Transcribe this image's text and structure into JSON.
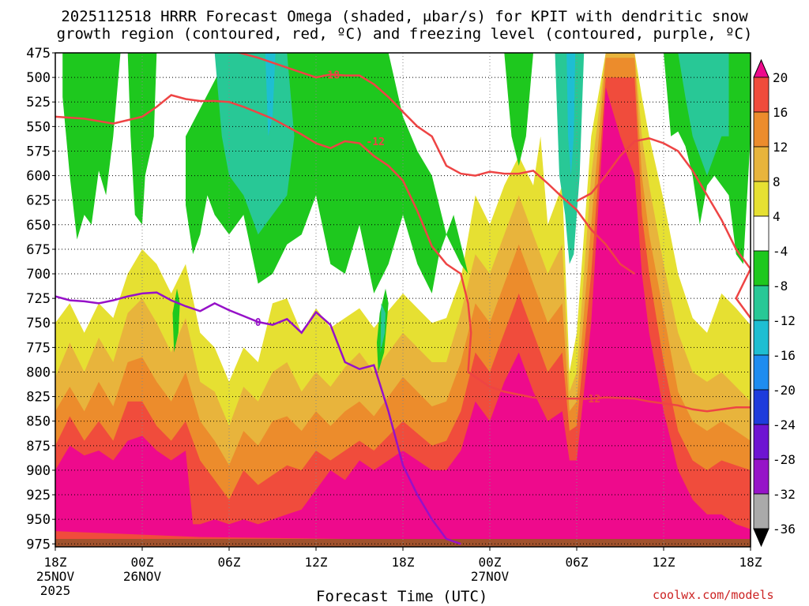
{
  "title_line1": "2025112518 HRRR Forecast Omega (shaded, μbar/s) for KPIT with dendritic snow",
  "title_line2": "growth region (contoured, red, ºC) and freezing level (contoured, purple, ºC)",
  "credit": "coolwx.com/models",
  "colors": {
    "pos4_8": "#e6e032",
    "pos8_12": "#e8b43c",
    "pos12_16": "#ec8c2c",
    "pos16_20": "#f04c3c",
    "pos20": "#ee0a8c",
    "neg4_8": "#1ec81e",
    "neg8_12": "#28c896",
    "neg12_16": "#1ebed2",
    "neg16_20": "#1e8cf0",
    "dgz": "#ee4444",
    "freezing": "#9611c8",
    "ground": "#a0522d"
  },
  "chart_data": {
    "type": "heatmap",
    "title": "2025112518 HRRR Forecast Omega (shaded, μbar/s) for KPIT with dendritic snow growth region (contoured, red, ºC) and freezing level (contoured, purple, ºC)",
    "xlabel": "Forecast Time (UTC)",
    "ylabel": "",
    "x_ticks": [
      {
        "hour": 0,
        "lines": [
          "18Z",
          "25NOV",
          "2025"
        ]
      },
      {
        "hour": 6,
        "lines": [
          "00Z",
          "26NOV"
        ]
      },
      {
        "hour": 12,
        "lines": [
          "06Z"
        ]
      },
      {
        "hour": 18,
        "lines": [
          "12Z"
        ]
      },
      {
        "hour": 24,
        "lines": [
          "18Z"
        ]
      },
      {
        "hour": 30,
        "lines": [
          "00Z",
          "27NOV"
        ]
      },
      {
        "hour": 36,
        "lines": [
          "06Z"
        ]
      },
      {
        "hour": 42,
        "lines": [
          "12Z"
        ]
      },
      {
        "hour": 48,
        "lines": [
          "18Z"
        ]
      }
    ],
    "xlim": [
      0,
      48
    ],
    "y_ticks": [
      "475",
      "500",
      "525",
      "550",
      "575",
      "600",
      "625",
      "650",
      "675",
      "700",
      "725",
      "750",
      "775",
      "800",
      "825",
      "850",
      "875",
      "900",
      "925",
      "950",
      "975"
    ],
    "ylim": [
      475,
      978
    ],
    "y_reversed": true,
    "colorbar": {
      "labels": [
        "20",
        "16",
        "12",
        "8",
        "4",
        "-4",
        "-8",
        "-12",
        "-16",
        "-20",
        "-24",
        "-28",
        "-32",
        "-36"
      ],
      "colors": [
        "#ee0a8c",
        "#f04c3c",
        "#ec8c2c",
        "#e8b43c",
        "#e6e032",
        "#ffffff",
        "#1ec81e",
        "#28c896",
        "#1ebed2",
        "#1e8cf0",
        "#1e3cdc",
        "#6e14d2",
        "#9614c8",
        "#aaaaaa",
        "#000000"
      ]
    },
    "contour_labels": [
      {
        "text": "-18",
        "hour": 19.0,
        "p": 497
      },
      {
        "text": "-12",
        "hour": 22.1,
        "p": 565
      },
      {
        "text": "-12",
        "hour": 37.0,
        "p": 827
      },
      {
        "text": "0",
        "hour": 14.0,
        "p": 749
      }
    ],
    "series": [
      {
        "name": "Freezing level 0ºC",
        "color": "#9611c8",
        "points": [
          [
            0,
            723
          ],
          [
            1,
            727
          ],
          [
            2,
            728
          ],
          [
            3,
            730
          ],
          [
            4,
            727
          ],
          [
            5,
            723
          ],
          [
            6,
            720
          ],
          [
            7,
            719
          ],
          [
            8,
            727
          ],
          [
            9,
            733
          ],
          [
            10,
            738
          ],
          [
            11,
            730
          ],
          [
            12,
            737
          ],
          [
            13,
            743
          ],
          [
            14,
            749
          ],
          [
            15,
            752
          ],
          [
            16,
            746
          ],
          [
            17,
            760
          ],
          [
            18,
            739
          ],
          [
            19,
            752
          ],
          [
            20,
            790
          ],
          [
            21,
            797
          ],
          [
            22,
            793
          ],
          [
            23,
            840
          ],
          [
            24,
            895
          ],
          [
            25,
            925
          ],
          [
            26,
            950
          ],
          [
            27,
            970
          ],
          [
            28,
            975
          ]
        ]
      },
      {
        "name": "DGZ -18ºC",
        "color": "#ee4444",
        "points": [
          [
            12,
            472
          ],
          [
            14,
            480
          ],
          [
            16,
            490
          ],
          [
            18,
            500
          ],
          [
            19,
            497
          ],
          [
            20,
            498
          ],
          [
            21,
            498
          ],
          [
            22,
            507
          ],
          [
            23,
            520
          ],
          [
            24,
            535
          ],
          [
            25,
            550
          ],
          [
            26,
            560
          ],
          [
            27,
            590
          ],
          [
            28,
            598
          ],
          [
            29,
            600
          ],
          [
            30,
            596
          ],
          [
            31,
            598
          ],
          [
            32,
            598
          ],
          [
            33,
            595
          ],
          [
            34,
            608
          ],
          [
            35,
            622
          ],
          [
            36,
            635
          ],
          [
            37,
            655
          ],
          [
            38,
            670
          ],
          [
            39,
            690
          ],
          [
            40,
            700
          ]
        ]
      },
      {
        "name": "DGZ -12ºC upper",
        "color": "#ee4444",
        "points": [
          [
            0,
            540
          ],
          [
            2,
            542
          ],
          [
            4,
            547
          ],
          [
            6,
            540
          ],
          [
            7,
            530
          ],
          [
            8,
            518
          ],
          [
            9,
            522
          ],
          [
            10,
            524
          ],
          [
            11,
            524
          ],
          [
            12,
            525
          ],
          [
            13,
            530
          ],
          [
            14,
            536
          ],
          [
            15,
            542
          ],
          [
            16,
            550
          ],
          [
            17,
            558
          ],
          [
            18,
            567
          ],
          [
            19,
            572
          ],
          [
            20,
            565
          ],
          [
            21,
            567
          ],
          [
            22,
            580
          ],
          [
            23,
            590
          ],
          [
            24,
            605
          ],
          [
            25,
            636
          ],
          [
            26,
            672
          ],
          [
            27,
            690
          ],
          [
            28,
            700
          ],
          [
            28.5,
            730
          ],
          [
            28.7,
            760
          ],
          [
            28.5,
            800
          ]
        ]
      },
      {
        "name": "DGZ -12ºC lower",
        "color": "#ee4444",
        "points": [
          [
            28.5,
            800
          ],
          [
            30,
            815
          ],
          [
            31,
            820
          ],
          [
            32,
            823
          ],
          [
            33,
            826
          ],
          [
            34,
            827
          ],
          [
            36,
            827
          ],
          [
            37,
            827
          ],
          [
            38,
            826
          ],
          [
            40,
            827
          ],
          [
            41,
            830
          ],
          [
            42,
            832
          ],
          [
            43,
            834
          ],
          [
            44,
            838
          ],
          [
            45,
            840
          ],
          [
            46,
            838
          ],
          [
            47,
            836
          ],
          [
            48,
            836
          ]
        ]
      },
      {
        "name": "DGZ -12ºC east",
        "color": "#ee4444",
        "points": [
          [
            36,
            626
          ],
          [
            37,
            618
          ],
          [
            38,
            600
          ],
          [
            39,
            580
          ],
          [
            40,
            565
          ],
          [
            41,
            562
          ],
          [
            42,
            567
          ],
          [
            43,
            575
          ],
          [
            44,
            595
          ],
          [
            45,
            620
          ],
          [
            46,
            645
          ],
          [
            47,
            675
          ],
          [
            48,
            695
          ],
          [
            47,
            725
          ],
          [
            48,
            745
          ]
        ]
      }
    ]
  }
}
